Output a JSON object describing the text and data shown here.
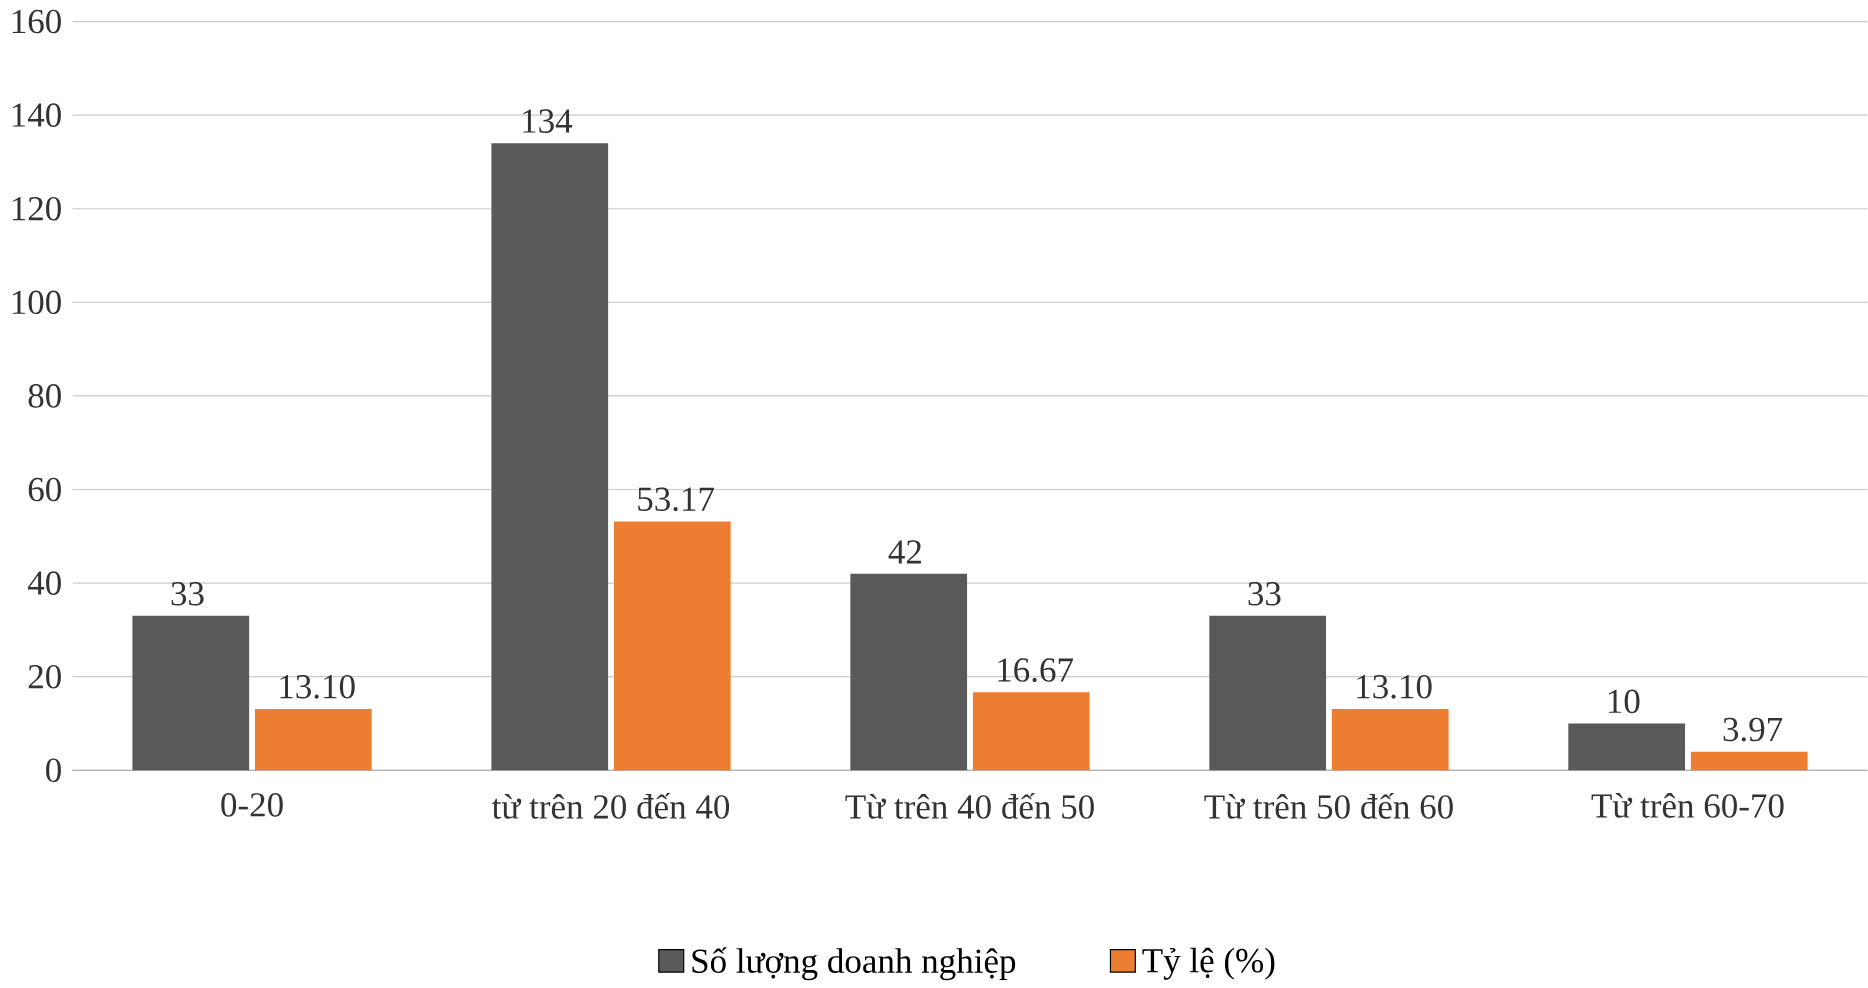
{
  "chart_data": {
    "type": "bar",
    "categories": [
      "0-20",
      "từ trên 20 đến 40",
      "Từ trên 40 đến 50",
      "Từ trên 50 đến 60",
      "Từ trên 60-70"
    ],
    "series": [
      {
        "name": "Số lượng doanh nghiệp",
        "color": "#595959",
        "values": [
          33,
          134,
          42,
          33,
          10
        ]
      },
      {
        "name": "Tỷ lệ (%)",
        "color": "#ed7d31",
        "values": [
          13.1,
          53.17,
          16.67,
          13.1,
          3.97
        ],
        "value_labels": [
          "13.10",
          "53.17",
          "16.67",
          "13.10",
          "3.97"
        ]
      }
    ],
    "ylim": [
      0,
      160
    ],
    "yticks": [
      0,
      20,
      40,
      60,
      80,
      100,
      120,
      140,
      160
    ],
    "grid": "y",
    "legend": "bottom",
    "data_labels": true
  }
}
